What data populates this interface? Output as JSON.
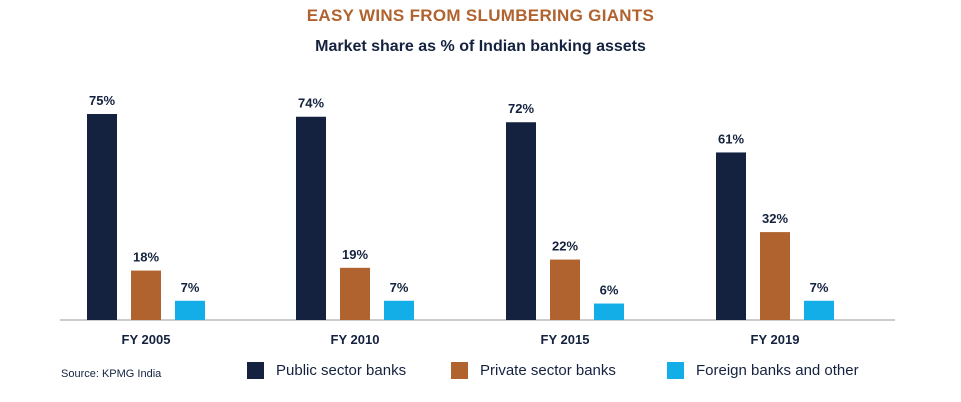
{
  "header": {
    "title": "EASY WINS FROM SLUMBERING GIANTS",
    "subtitle": "Market share as % of Indian banking assets"
  },
  "chart_data": {
    "type": "bar",
    "title": "Market share as % of Indian banking assets",
    "categories": [
      "FY 2005",
      "FY 2010",
      "FY 2015",
      "FY 2019"
    ],
    "series": [
      {
        "name": "Public sector banks",
        "color": "#14223f",
        "values": [
          75,
          74,
          72,
          61
        ]
      },
      {
        "name": "Private sector banks",
        "color": "#b0632f",
        "values": [
          18,
          19,
          22,
          32
        ]
      },
      {
        "name": "Foreign banks and other",
        "color": "#13aee8",
        "values": [
          7,
          7,
          6,
          7
        ]
      }
    ],
    "value_suffix": "%",
    "ylim": [
      0,
      80
    ],
    "xlabel": "",
    "ylabel": "",
    "grid": false
  },
  "source": "Source: KPMG India",
  "legend": [
    {
      "label": "Public sector banks",
      "color": "#14223f"
    },
    {
      "label": "Private sector banks",
      "color": "#b0632f"
    },
    {
      "label": "Foreign banks and other",
      "color": "#13aee8"
    }
  ]
}
